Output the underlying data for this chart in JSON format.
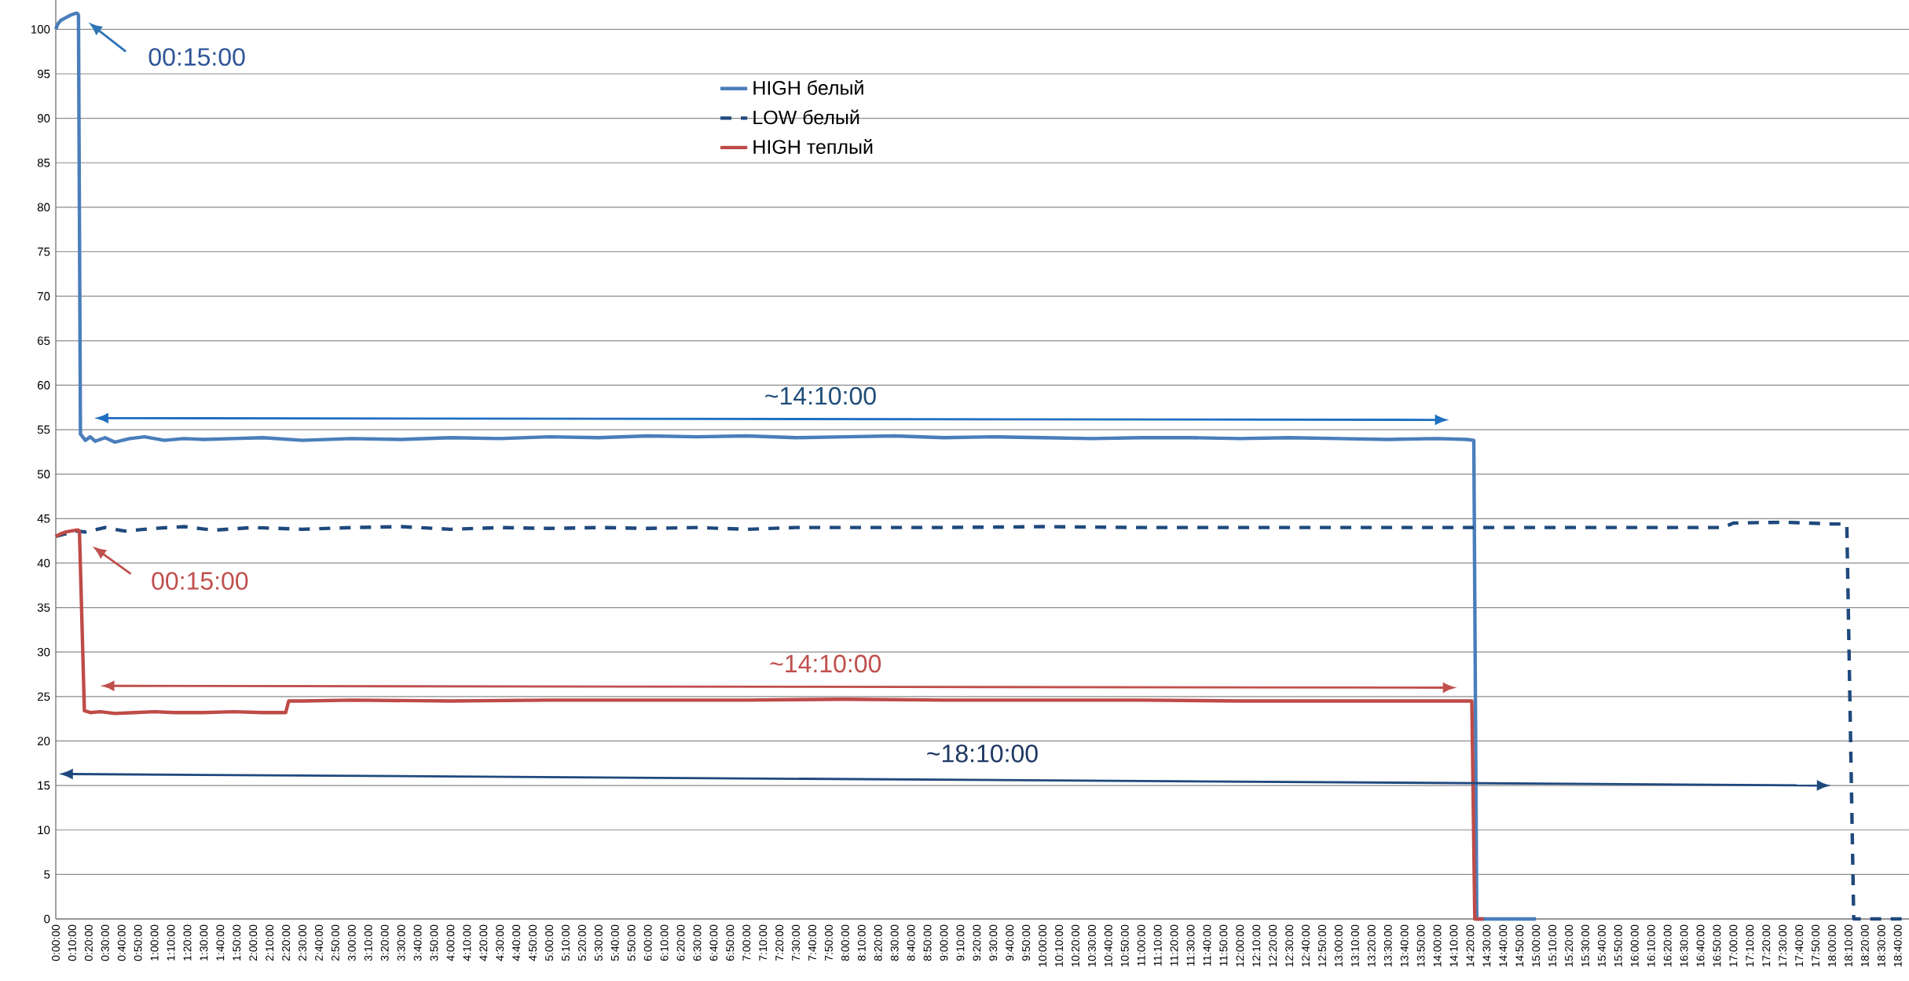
{
  "chart_data": {
    "type": "line",
    "xlim": [
      0,
      18.78
    ],
    "ylim": [
      0,
      103.3
    ],
    "yticks": [
      0,
      5,
      10,
      15,
      20,
      25,
      30,
      35,
      40,
      45,
      50,
      55,
      60,
      65,
      70,
      75,
      80,
      85,
      90,
      95,
      100
    ],
    "xticks": [
      {
        "value": 0,
        "label": "0:00:00"
      },
      {
        "value": 0.1667,
        "label": "0:10:00"
      },
      {
        "value": 0.3333,
        "label": "0:20:00"
      },
      {
        "value": 0.5,
        "label": "0:30:00"
      },
      {
        "value": 0.6667,
        "label": "0:40:00"
      },
      {
        "value": 0.8333,
        "label": "0:50:00"
      },
      {
        "value": 1,
        "label": "1:00:00"
      },
      {
        "value": 1.1667,
        "label": "1:10:00"
      },
      {
        "value": 1.3333,
        "label": "1:20:00"
      },
      {
        "value": 1.5,
        "label": "1:30:00"
      },
      {
        "value": 1.6667,
        "label": "1:40:00"
      },
      {
        "value": 1.8333,
        "label": "1:50:00"
      },
      {
        "value": 2,
        "label": "2:00:00"
      },
      {
        "value": 2.1667,
        "label": "2:10:00"
      },
      {
        "value": 2.3333,
        "label": "2:20:00"
      },
      {
        "value": 2.5,
        "label": "2:30:00"
      },
      {
        "value": 2.6667,
        "label": "2:40:00"
      },
      {
        "value": 2.8333,
        "label": "2:50:00"
      },
      {
        "value": 3,
        "label": "3:00:00"
      },
      {
        "value": 3.1667,
        "label": "3:10:00"
      },
      {
        "value": 3.3333,
        "label": "3:20:00"
      },
      {
        "value": 3.5,
        "label": "3:30:00"
      },
      {
        "value": 3.6667,
        "label": "3:40:00"
      },
      {
        "value": 3.8333,
        "label": "3:50:00"
      },
      {
        "value": 4,
        "label": "4:00:00"
      },
      {
        "value": 4.1667,
        "label": "4:10:00"
      },
      {
        "value": 4.3333,
        "label": "4:20:00"
      },
      {
        "value": 4.5,
        "label": "4:30:00"
      },
      {
        "value": 4.6667,
        "label": "4:40:00"
      },
      {
        "value": 4.8333,
        "label": "4:50:00"
      },
      {
        "value": 5,
        "label": "5:00:00"
      },
      {
        "value": 5.1667,
        "label": "5:10:00"
      },
      {
        "value": 5.3333,
        "label": "5:20:00"
      },
      {
        "value": 5.5,
        "label": "5:30:00"
      },
      {
        "value": 5.6667,
        "label": "5:40:00"
      },
      {
        "value": 5.8333,
        "label": "5:50:00"
      },
      {
        "value": 6,
        "label": "6:00:00"
      },
      {
        "value": 6.1667,
        "label": "6:10:00"
      },
      {
        "value": 6.3333,
        "label": "6:20:00"
      },
      {
        "value": 6.5,
        "label": "6:30:00"
      },
      {
        "value": 6.6667,
        "label": "6:40:00"
      },
      {
        "value": 6.8333,
        "label": "6:50:00"
      },
      {
        "value": 7,
        "label": "7:00:00"
      },
      {
        "value": 7.1667,
        "label": "7:10:00"
      },
      {
        "value": 7.3333,
        "label": "7:20:00"
      },
      {
        "value": 7.5,
        "label": "7:30:00"
      },
      {
        "value": 7.6667,
        "label": "7:40:00"
      },
      {
        "value": 7.8333,
        "label": "7:50:00"
      },
      {
        "value": 8,
        "label": "8:00:00"
      },
      {
        "value": 8.1667,
        "label": "8:10:00"
      },
      {
        "value": 8.3333,
        "label": "8:20:00"
      },
      {
        "value": 8.5,
        "label": "8:30:00"
      },
      {
        "value": 8.6667,
        "label": "8:40:00"
      },
      {
        "value": 8.8333,
        "label": "8:50:00"
      },
      {
        "value": 9,
        "label": "9:00:00"
      },
      {
        "value": 9.1667,
        "label": "9:10:00"
      },
      {
        "value": 9.3333,
        "label": "9:20:00"
      },
      {
        "value": 9.5,
        "label": "9:30:00"
      },
      {
        "value": 9.6667,
        "label": "9:40:00"
      },
      {
        "value": 9.8333,
        "label": "9:50:00"
      },
      {
        "value": 10,
        "label": "10:00:00"
      },
      {
        "value": 10.1667,
        "label": "10:10:00"
      },
      {
        "value": 10.3333,
        "label": "10:20:00"
      },
      {
        "value": 10.5,
        "label": "10:30:00"
      },
      {
        "value": 10.6667,
        "label": "10:40:00"
      },
      {
        "value": 10.8333,
        "label": "10:50:00"
      },
      {
        "value": 11,
        "label": "11:00:00"
      },
      {
        "value": 11.1667,
        "label": "11:10:00"
      },
      {
        "value": 11.3333,
        "label": "11:20:00"
      },
      {
        "value": 11.5,
        "label": "11:30:00"
      },
      {
        "value": 11.6667,
        "label": "11:40:00"
      },
      {
        "value": 11.8333,
        "label": "11:50:00"
      },
      {
        "value": 12,
        "label": "12:00:00"
      },
      {
        "value": 12.1667,
        "label": "12:10:00"
      },
      {
        "value": 12.3333,
        "label": "12:20:00"
      },
      {
        "value": 12.5,
        "label": "12:30:00"
      },
      {
        "value": 12.6667,
        "label": "12:40:00"
      },
      {
        "value": 12.8333,
        "label": "12:50:00"
      },
      {
        "value": 13,
        "label": "13:00:00"
      },
      {
        "value": 13.1667,
        "label": "13:10:00"
      },
      {
        "value": 13.3333,
        "label": "13:20:00"
      },
      {
        "value": 13.5,
        "label": "13:30:00"
      },
      {
        "value": 13.6667,
        "label": "13:40:00"
      },
      {
        "value": 13.8333,
        "label": "13:50:00"
      },
      {
        "value": 14,
        "label": "14:00:00"
      },
      {
        "value": 14.1667,
        "label": "14:10:00"
      },
      {
        "value": 14.3333,
        "label": "14:20:00"
      },
      {
        "value": 14.5,
        "label": "14:30:00"
      },
      {
        "value": 14.6667,
        "label": "14:40:00"
      },
      {
        "value": 14.8333,
        "label": "14:50:00"
      },
      {
        "value": 15,
        "label": "15:00:00"
      },
      {
        "value": 15.1667,
        "label": "15:10:00"
      },
      {
        "value": 15.3333,
        "label": "15:20:00"
      },
      {
        "value": 15.5,
        "label": "15:30:00"
      },
      {
        "value": 15.6667,
        "label": "15:40:00"
      },
      {
        "value": 15.8333,
        "label": "15:50:00"
      },
      {
        "value": 16,
        "label": "16:00:00"
      },
      {
        "value": 16.1667,
        "label": "16:10:00"
      },
      {
        "value": 16.3333,
        "label": "16:20:00"
      },
      {
        "value": 16.5,
        "label": "16:30:00"
      },
      {
        "value": 16.6667,
        "label": "16:40:00"
      },
      {
        "value": 16.8333,
        "label": "16:50:00"
      },
      {
        "value": 17,
        "label": "17:00:00"
      },
      {
        "value": 17.1667,
        "label": "17:10:00"
      },
      {
        "value": 17.3333,
        "label": "17:20:00"
      },
      {
        "value": 17.5,
        "label": "17:30:00"
      },
      {
        "value": 17.6667,
        "label": "17:40:00"
      },
      {
        "value": 17.8333,
        "label": "17:50:00"
      },
      {
        "value": 18,
        "label": "18:00:00"
      },
      {
        "value": 18.1667,
        "label": "18:10:00"
      },
      {
        "value": 18.3333,
        "label": "18:20:00"
      },
      {
        "value": 18.5,
        "label": "18:30:00"
      },
      {
        "value": 18.6667,
        "label": "18:40:00"
      }
    ],
    "grid": "y",
    "legend": "top",
    "series": [
      {
        "name": "HIGH белый",
        "color": "#4a7ebb",
        "line_style": "solid",
        "x": [
          0,
          0.02,
          0.05,
          0.1,
          0.15,
          0.2,
          0.22,
          0.23,
          0.25,
          0.3,
          0.35,
          0.4,
          0.5,
          0.6,
          0.75,
          0.9,
          1.1,
          1.3,
          1.5,
          1.8,
          2.1,
          2.5,
          3,
          3.5,
          4,
          4.5,
          5,
          5.5,
          6,
          6.5,
          7,
          7.5,
          8,
          8.5,
          9,
          9.5,
          10,
          10.5,
          11,
          11.5,
          12,
          12.5,
          13,
          13.5,
          14,
          14.3,
          14.37,
          14.4,
          15.0
        ],
        "values": [
          100,
          100.6,
          101,
          101.3,
          101.6,
          101.8,
          101.8,
          101.6,
          54.5,
          53.8,
          54.2,
          53.7,
          54.1,
          53.6,
          54.0,
          54.2,
          53.8,
          54.0,
          53.9,
          54.0,
          54.1,
          53.8,
          54.0,
          53.9,
          54.1,
          54.0,
          54.2,
          54.1,
          54.3,
          54.2,
          54.3,
          54.1,
          54.2,
          54.3,
          54.1,
          54.2,
          54.1,
          54.0,
          54.1,
          54.1,
          54.0,
          54.1,
          54.0,
          53.9,
          54.0,
          53.9,
          53.8,
          0,
          0
        ]
      },
      {
        "name": "LOW белый",
        "color": "#1f497d",
        "line_style": "dashed",
        "x": [
          0,
          0.1,
          0.2,
          0.3,
          0.5,
          0.7,
          1,
          1.3,
          1.6,
          2,
          2.5,
          3,
          3.5,
          4,
          4.5,
          5,
          5.5,
          6,
          6.5,
          7,
          7.5,
          8,
          9,
          10,
          11,
          12,
          13,
          14,
          15,
          16,
          16.9,
          17.0,
          17.5,
          18,
          18.15,
          18.22,
          18.78
        ],
        "values": [
          43,
          43.3,
          43.6,
          43.5,
          44,
          43.6,
          43.9,
          44.1,
          43.7,
          44,
          43.8,
          44,
          44.1,
          43.8,
          44,
          43.9,
          44,
          43.9,
          44,
          43.8,
          44,
          44,
          44,
          44.1,
          44,
          44,
          44,
          44,
          44,
          44,
          44,
          44.5,
          44.6,
          44.4,
          44.4,
          0,
          0
        ]
      },
      {
        "name": "HIGH теплый",
        "color": "#be4b48",
        "line_style": "solid",
        "x": [
          0,
          0.05,
          0.1,
          0.15,
          0.2,
          0.23,
          0.24,
          0.29,
          0.35,
          0.45,
          0.6,
          0.8,
          1.0,
          1.2,
          1.5,
          1.8,
          2.1,
          2.33,
          2.36,
          2.5,
          3,
          4,
          5,
          6,
          7,
          8,
          9,
          10,
          11,
          12,
          13,
          14,
          14.35,
          14.38,
          14.47
        ],
        "values": [
          43,
          43.3,
          43.5,
          43.6,
          43.7,
          43.7,
          43.5,
          23.4,
          23.2,
          23.3,
          23.1,
          23.2,
          23.3,
          23.2,
          23.2,
          23.3,
          23.2,
          23.2,
          24.5,
          24.5,
          24.6,
          24.5,
          24.6,
          24.6,
          24.6,
          24.7,
          24.6,
          24.6,
          24.6,
          24.5,
          24.5,
          24.5,
          24.5,
          0,
          0
        ]
      }
    ],
    "annotations": [
      "00:15:00",
      "~14:10:00",
      "00:15:00",
      "~14:10:00",
      "~18:10:00"
    ]
  }
}
